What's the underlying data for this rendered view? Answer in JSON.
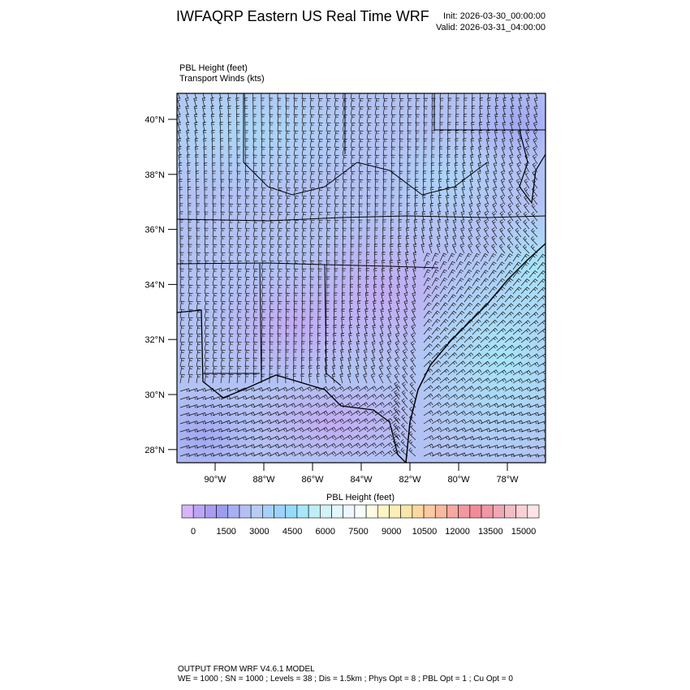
{
  "header": {
    "title": "IWFAQRP Eastern US Real Time WRF",
    "init": "Init: 2026-03-30_00:00:00",
    "valid": "Valid: 2026-03-31_04:00:00"
  },
  "panel": {
    "field_label": "PBL Height   (feet)",
    "wind_label": "Transport Winds   (kts)",
    "lat_ticks": [
      "40°N",
      "38°N",
      "36°N",
      "34°N",
      "32°N",
      "30°N",
      "28°N"
    ],
    "lon_ticks": [
      "90°W",
      "88°W",
      "86°W",
      "84°W",
      "82°W",
      "80°W",
      "78°W"
    ]
  },
  "colorbar": {
    "title": "PBL Height  (feet)",
    "labels": [
      0,
      1500,
      3000,
      4500,
      6000,
      7500,
      9000,
      10500,
      12000,
      13500,
      15000
    ],
    "colors": [
      "#d8b4fa",
      "#bba6f5",
      "#a99cf2",
      "#9c9cf0",
      "#a8b0f3",
      "#b4c0f4",
      "#b7cdf6",
      "#a8d0f8",
      "#9dd3f8",
      "#94dcf8",
      "#a6e8fa",
      "#bdeefc",
      "#d4f2fc",
      "#e4f6fc",
      "#eef8fc",
      "#f6fbfc",
      "#fefce0",
      "#fff5c4",
      "#fdeeb8",
      "#fde4a8",
      "#fcd8a0",
      "#fbcaa0",
      "#f9b8a0",
      "#f7a8a0",
      "#f498a0",
      "#f08c98",
      "#ee98a4",
      "#f0a8b4",
      "#f4bcc4",
      "#f8d0d6",
      "#fce4e8"
    ]
  },
  "footer": {
    "line1": "OUTPUT FROM WRF V4.6.1 MODEL",
    "line2": "WE = 1000 ; SN = 1000 ; Levels = 38 ; Dis = 1.5km ; Phys Opt = 8 ; PBL Opt = 1 ; Cu Opt = 0"
  }
}
